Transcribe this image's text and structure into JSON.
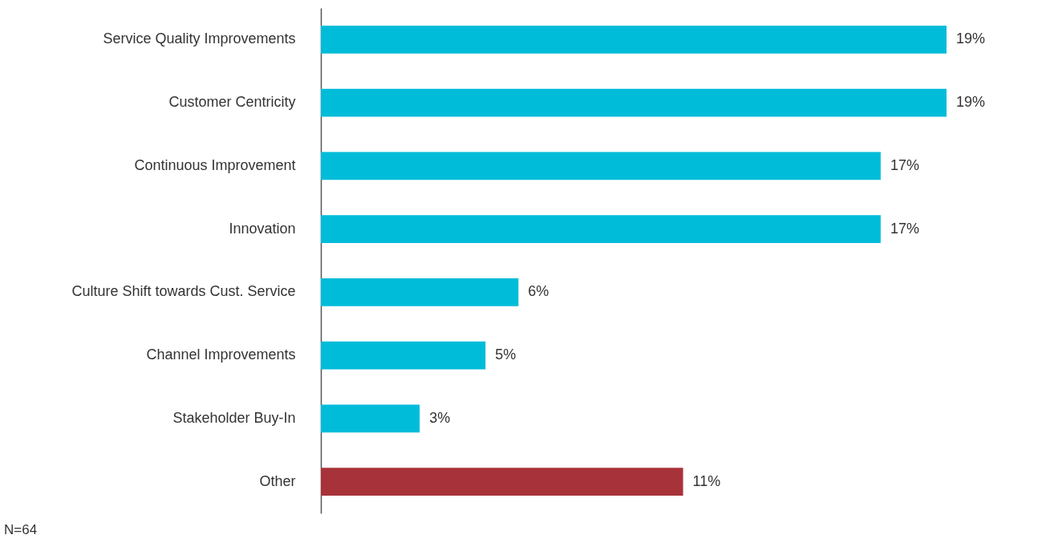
{
  "chart_data": {
    "type": "bar",
    "orientation": "horizontal",
    "categories": [
      "Service Quality Improvements",
      "Customer Centricity",
      "Continuous Improvement",
      "Innovation",
      "Culture Shift towards Cust. Service",
      "Channel Improvements",
      "Stakeholder Buy-In",
      "Other"
    ],
    "values": [
      19,
      19,
      17,
      17,
      6,
      5,
      3,
      11
    ],
    "colors": [
      "#00bcd9",
      "#00bcd9",
      "#00bcd9",
      "#00bcd9",
      "#00bcd9",
      "#00bcd9",
      "#00bcd9",
      "#a8323a"
    ],
    "value_labels": [
      "19%",
      "19%",
      "17%",
      "17%",
      "6%",
      "5%",
      "3%",
      "11%"
    ],
    "annotations": [
      "N=64"
    ]
  }
}
